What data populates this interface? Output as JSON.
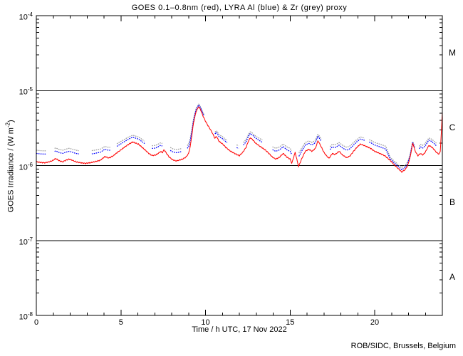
{
  "chart_data": {
    "type": "line",
    "title": "GOES 0.1–0.8nm (red), LYRA Al (blue) & Zr (grey) proxy",
    "xlabel": "Time / h UTC, 17 Nov 2022",
    "ylabel_pre": "GOES Irradiance / (W m",
    "ylabel_sup": "-2",
    "ylabel_post": ")",
    "footer": "ROB/SIDC, Brussels, Belgium",
    "grid": false,
    "legend": "encoded in title colors",
    "x_range": [
      0,
      24
    ],
    "x_tick_step": 1,
    "x_major_step": 5,
    "x_tick_labels": [
      [
        0,
        "0"
      ],
      [
        5,
        "5"
      ],
      [
        10,
        "10"
      ],
      [
        15,
        "15"
      ],
      [
        20,
        "20"
      ]
    ],
    "y_log_range": [
      -8,
      -4
    ],
    "y_unit": "W m-2",
    "y_ticks": [
      {
        "log": -4,
        "base": "10",
        "exp": "-4"
      },
      {
        "log": -5,
        "base": "10",
        "exp": "-5"
      },
      {
        "log": -6,
        "base": "10",
        "exp": "-6"
      },
      {
        "log": -7,
        "base": "10",
        "exp": "-7"
      },
      {
        "log": -8,
        "base": "10",
        "exp": "-8"
      }
    ],
    "class_boundaries_log": [
      -5,
      -6,
      -7
    ],
    "class_bands": [
      {
        "label": "M",
        "log_center": -4.5
      },
      {
        "label": "C",
        "log_center": -5.5
      },
      {
        "label": "B",
        "log_center": -6.5
      },
      {
        "label": "A",
        "log_center": -7.5
      }
    ],
    "unit_scale": 1e-06,
    "axis_color": "#000000",
    "background_color": "#ffffff",
    "series": [
      {
        "id": "goes",
        "name": "GOES 0.1-0.8nm",
        "color": "#ff0000",
        "style": "solid",
        "points": [
          [
            0.0,
            1.12
          ],
          [
            0.25,
            1.1
          ],
          [
            0.5,
            1.09
          ],
          [
            0.75,
            1.12
          ],
          [
            0.95,
            1.16
          ],
          [
            1.15,
            1.24
          ],
          [
            1.35,
            1.16
          ],
          [
            1.55,
            1.12
          ],
          [
            1.75,
            1.18
          ],
          [
            1.95,
            1.22
          ],
          [
            2.15,
            1.17
          ],
          [
            2.35,
            1.12
          ],
          [
            2.6,
            1.09
          ],
          [
            2.9,
            1.07
          ],
          [
            3.2,
            1.09
          ],
          [
            3.5,
            1.13
          ],
          [
            3.8,
            1.18
          ],
          [
            4.05,
            1.32
          ],
          [
            4.3,
            1.26
          ],
          [
            4.55,
            1.35
          ],
          [
            4.8,
            1.5
          ],
          [
            5.05,
            1.65
          ],
          [
            5.3,
            1.82
          ],
          [
            5.55,
            1.98
          ],
          [
            5.7,
            2.06
          ],
          [
            5.85,
            2.0
          ],
          [
            6.05,
            1.92
          ],
          [
            6.25,
            1.75
          ],
          [
            6.45,
            1.6
          ],
          [
            6.65,
            1.45
          ],
          [
            6.85,
            1.36
          ],
          [
            7.05,
            1.38
          ],
          [
            7.2,
            1.45
          ],
          [
            7.35,
            1.54
          ],
          [
            7.45,
            1.48
          ],
          [
            7.55,
            1.63
          ],
          [
            7.7,
            1.45
          ],
          [
            7.85,
            1.3
          ],
          [
            8.05,
            1.2
          ],
          [
            8.25,
            1.15
          ],
          [
            8.45,
            1.18
          ],
          [
            8.65,
            1.22
          ],
          [
            8.85,
            1.3
          ],
          [
            9.0,
            1.45
          ],
          [
            9.1,
            1.8
          ],
          [
            9.2,
            2.6
          ],
          [
            9.3,
            3.8
          ],
          [
            9.45,
            5.3
          ],
          [
            9.6,
            6.1
          ],
          [
            9.7,
            5.6
          ],
          [
            9.85,
            4.6
          ],
          [
            10.0,
            3.9
          ],
          [
            10.15,
            3.4
          ],
          [
            10.3,
            3.0
          ],
          [
            10.45,
            2.6
          ],
          [
            10.55,
            2.3
          ],
          [
            10.65,
            2.45
          ],
          [
            10.8,
            2.1
          ],
          [
            11.0,
            1.95
          ],
          [
            11.2,
            1.75
          ],
          [
            11.4,
            1.6
          ],
          [
            11.6,
            1.5
          ],
          [
            11.8,
            1.42
          ],
          [
            12.0,
            1.35
          ],
          [
            12.2,
            1.5
          ],
          [
            12.4,
            1.75
          ],
          [
            12.55,
            2.15
          ],
          [
            12.65,
            2.35
          ],
          [
            12.8,
            2.2
          ],
          [
            12.95,
            2.0
          ],
          [
            13.15,
            1.85
          ],
          [
            13.35,
            1.72
          ],
          [
            13.55,
            1.6
          ],
          [
            13.75,
            1.45
          ],
          [
            13.95,
            1.3
          ],
          [
            14.15,
            1.22
          ],
          [
            14.35,
            1.28
          ],
          [
            14.6,
            1.45
          ],
          [
            14.8,
            1.3
          ],
          [
            15.0,
            1.22
          ],
          [
            15.1,
            1.07
          ],
          [
            15.3,
            1.5
          ],
          [
            15.5,
            0.97
          ],
          [
            15.7,
            1.25
          ],
          [
            15.9,
            1.55
          ],
          [
            16.1,
            1.65
          ],
          [
            16.3,
            1.55
          ],
          [
            16.5,
            1.7
          ],
          [
            16.65,
            2.15
          ],
          [
            16.8,
            1.85
          ],
          [
            17.0,
            1.5
          ],
          [
            17.15,
            1.35
          ],
          [
            17.3,
            1.25
          ],
          [
            17.5,
            1.45
          ],
          [
            17.65,
            1.4
          ],
          [
            17.9,
            1.55
          ],
          [
            18.1,
            1.38
          ],
          [
            18.35,
            1.27
          ],
          [
            18.55,
            1.35
          ],
          [
            18.75,
            1.55
          ],
          [
            18.95,
            1.75
          ],
          [
            19.15,
            1.93
          ],
          [
            19.3,
            1.88
          ],
          [
            19.5,
            1.8
          ],
          [
            19.75,
            1.7
          ],
          [
            20.0,
            1.55
          ],
          [
            20.3,
            1.45
          ],
          [
            20.6,
            1.35
          ],
          [
            20.9,
            1.18
          ],
          [
            21.15,
            1.03
          ],
          [
            21.35,
            0.93
          ],
          [
            21.6,
            0.82
          ],
          [
            21.8,
            0.88
          ],
          [
            21.95,
            1.0
          ],
          [
            22.1,
            1.3
          ],
          [
            22.25,
            2.0
          ],
          [
            22.4,
            1.55
          ],
          [
            22.55,
            1.35
          ],
          [
            22.7,
            1.45
          ],
          [
            22.85,
            1.38
          ],
          [
            23.0,
            1.52
          ],
          [
            23.2,
            1.85
          ],
          [
            23.35,
            1.78
          ],
          [
            23.5,
            1.65
          ],
          [
            23.65,
            1.5
          ],
          [
            23.8,
            1.42
          ],
          [
            23.88,
            1.55
          ],
          [
            23.94,
            2.8
          ],
          [
            24.0,
            5.2
          ]
        ]
      },
      {
        "id": "lyra-al",
        "name": "LYRA Al proxy",
        "color": "#0000ff",
        "style": "dotted",
        "offset": 0.33,
        "converge_offset": 0.06
      },
      {
        "id": "lyra-zr",
        "name": "LYRA Zr proxy",
        "color": "#9a9a9a",
        "style": "dotted",
        "offset": 0.48,
        "converge_offset": 0.12
      }
    ],
    "proxy_gaps_h": [
      [
        0.62,
        1.05
      ],
      [
        2.55,
        3.25
      ],
      [
        4.4,
        4.72
      ],
      [
        6.42,
        6.82
      ],
      [
        7.48,
        7.9
      ],
      [
        8.58,
        8.88
      ],
      [
        9.95,
        10.55
      ],
      [
        11.32,
        11.83
      ],
      [
        11.98,
        12.22
      ],
      [
        13.38,
        13.92
      ],
      [
        15.1,
        15.5
      ],
      [
        16.88,
        17.35
      ],
      [
        19.42,
        19.65
      ],
      [
        22.38,
        22.62
      ],
      [
        23.68,
        24.01
      ]
    ],
    "converge_range_h": [
      20.9,
      22.45
    ]
  }
}
